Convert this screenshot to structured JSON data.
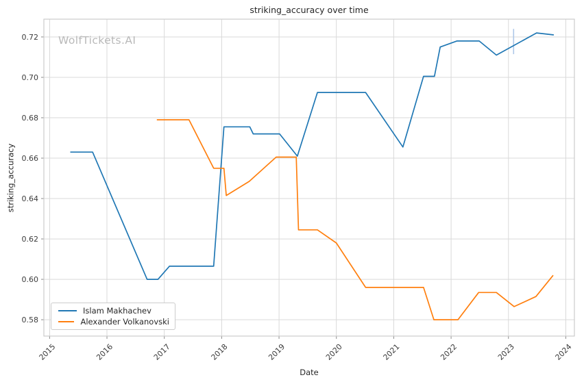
{
  "watermark": "WolfTickets.AI",
  "chart_data": {
    "type": "line",
    "title": "striking_accuracy over time",
    "xlabel": "Date",
    "ylabel": "striking_accuracy",
    "xlim": [
      2014.9,
      2024.15
    ],
    "ylim": [
      0.5719,
      0.7288
    ],
    "x_ticks": [
      2015,
      2016,
      2017,
      2018,
      2019,
      2020,
      2021,
      2022,
      2023,
      2024
    ],
    "y_ticks": [
      0.58,
      0.6,
      0.62,
      0.64,
      0.66,
      0.68,
      0.7,
      0.72
    ],
    "grid": true,
    "grid_color": "#d9d9d9",
    "spine_color": "#cccccc",
    "tick_color": "#8a8a8a",
    "tick_label_color": "#3b3b3b",
    "legend_position": "lower left",
    "series": [
      {
        "name": "Islam Makhachev",
        "color": "#1f77b4",
        "points": [
          [
            2015.36,
            0.663
          ],
          [
            2015.75,
            0.663
          ],
          [
            2016.7,
            0.6
          ],
          [
            2016.89,
            0.6
          ],
          [
            2017.09,
            0.6065
          ],
          [
            2017.86,
            0.6065
          ],
          [
            2018.04,
            0.6755
          ],
          [
            2018.49,
            0.6755
          ],
          [
            2018.55,
            0.672
          ],
          [
            2019.01,
            0.672
          ],
          [
            2019.32,
            0.661
          ],
          [
            2019.67,
            0.6925
          ],
          [
            2020.51,
            0.6925
          ],
          [
            2021.16,
            0.6655
          ],
          [
            2021.52,
            0.7005
          ],
          [
            2021.71,
            0.7005
          ],
          [
            2021.81,
            0.715
          ],
          [
            2022.1,
            0.718
          ],
          [
            2022.49,
            0.718
          ],
          [
            2022.79,
            0.711
          ],
          [
            2023.49,
            0.722
          ],
          [
            2023.79,
            0.721
          ]
        ]
      },
      {
        "name": "Alexander Volkanovski",
        "color": "#ff7f0e",
        "points": [
          [
            2016.87,
            0.679
          ],
          [
            2017.43,
            0.679
          ],
          [
            2017.86,
            0.655
          ],
          [
            2018.04,
            0.655
          ],
          [
            2018.08,
            0.6415
          ],
          [
            2018.48,
            0.6485
          ],
          [
            2018.95,
            0.6605
          ],
          [
            2019.3,
            0.6605
          ],
          [
            2019.34,
            0.6245
          ],
          [
            2019.67,
            0.6245
          ],
          [
            2020.0,
            0.618
          ],
          [
            2020.51,
            0.596
          ],
          [
            2021.52,
            0.596
          ],
          [
            2021.7,
            0.58
          ],
          [
            2022.12,
            0.58
          ],
          [
            2022.48,
            0.5935
          ],
          [
            2022.79,
            0.5935
          ],
          [
            2023.1,
            0.5865
          ],
          [
            2023.48,
            0.5915
          ],
          [
            2023.78,
            0.602
          ]
        ]
      }
    ],
    "annotations": [
      {
        "type": "vertical-segment",
        "x": 2023.09,
        "y_from": 0.7115,
        "y_to": 0.724,
        "color": "#aec7e8"
      }
    ]
  }
}
